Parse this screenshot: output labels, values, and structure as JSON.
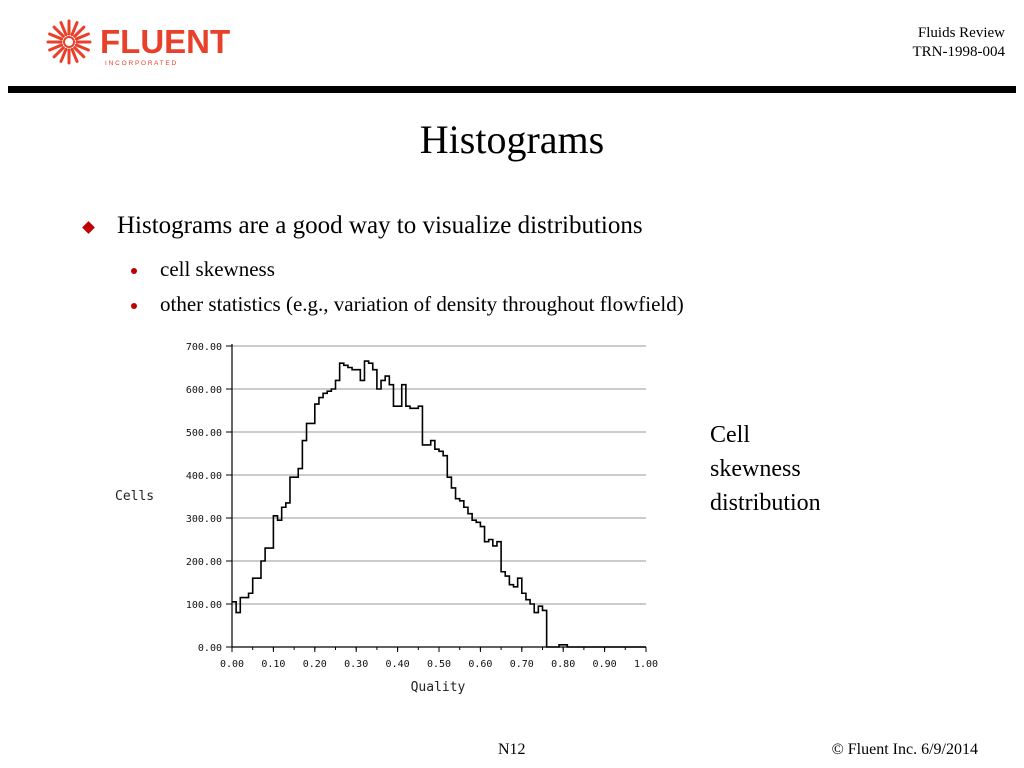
{
  "header": {
    "logo_word": "FLUENT",
    "logo_sub": "I N C O R P O R A T E D",
    "ref_line1": "Fluids Review",
    "ref_line2": "TRN-1998-004"
  },
  "slide": {
    "title": "Histograms",
    "bullet": "Histograms are a good way to visualize distributions",
    "sub_bullets": [
      "cell skewness",
      "other statistics (e.g., variation of density throughout flowfield)"
    ]
  },
  "caption": [
    "Cell",
    "skewness",
    "distribution"
  ],
  "footer": {
    "page": "N12",
    "copyright": "© Fluent Inc. 6/9/2014"
  },
  "colors": {
    "accent": "#c00000",
    "logo": "#e8402a",
    "grid": "#9a9a9a"
  },
  "chart_data": {
    "type": "bar",
    "xlabel": "Quality",
    "ylabel": "Cells",
    "xlim": [
      0,
      1
    ],
    "ylim": [
      0,
      700
    ],
    "xticks": [
      "0.00",
      "0.10",
      "0.20",
      "0.30",
      "0.40",
      "0.50",
      "0.60",
      "0.70",
      "0.80",
      "0.90",
      "1.00"
    ],
    "yticks": [
      "0.00",
      "100.00",
      "200.00",
      "300.00",
      "400.00",
      "500.00",
      "600.00",
      "700.00"
    ],
    "grid": true,
    "bin_width": 0.01,
    "bin_start": 0.0,
    "values": [
      105,
      80,
      115,
      115,
      125,
      160,
      160,
      200,
      230,
      230,
      305,
      295,
      325,
      335,
      395,
      395,
      415,
      480,
      520,
      520,
      565,
      580,
      590,
      595,
      600,
      620,
      660,
      655,
      650,
      645,
      645,
      620,
      665,
      660,
      645,
      600,
      620,
      630,
      610,
      560,
      560,
      610,
      560,
      555,
      555,
      560,
      470,
      470,
      480,
      460,
      455,
      445,
      395,
      370,
      345,
      340,
      325,
      310,
      295,
      290,
      280,
      245,
      250,
      235,
      245,
      175,
      165,
      145,
      140,
      160,
      125,
      110,
      100,
      80,
      95,
      85,
      0,
      0,
      0,
      5,
      5,
      0,
      0,
      0,
      0,
      0,
      0,
      0,
      0,
      0,
      0,
      0,
      0,
      0,
      0,
      0,
      0,
      0,
      0,
      0
    ],
    "legend": "none"
  }
}
